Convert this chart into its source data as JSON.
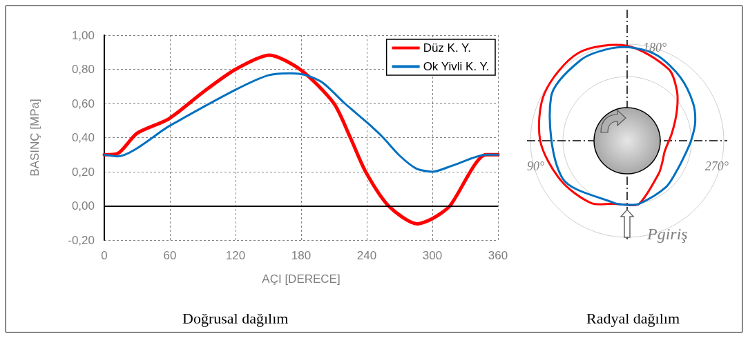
{
  "chart_data": [
    {
      "type": "line",
      "title": "Doğrusal dağılım",
      "xlabel": "AÇI [DERECE]",
      "ylabel": "BASINÇ [MPa]",
      "xlim": [
        0,
        360
      ],
      "xticks": [
        0,
        60,
        120,
        180,
        240,
        300,
        360
      ],
      "ylim": [
        -0.2,
        1
      ],
      "yticks": [
        {
          "value": -0.2,
          "label": "-0,20"
        },
        {
          "value": 0,
          "label": "0,00"
        },
        {
          "value": 0.2,
          "label": "0,20"
        },
        {
          "value": 0.4,
          "label": "0,40"
        },
        {
          "value": 0.6,
          "label": "0,60"
        },
        {
          "value": 0.8,
          "label": "0,80"
        },
        {
          "value": 1,
          "label": "1,00"
        }
      ],
      "grid": true,
      "legend": "top right",
      "marker": "none",
      "line_style": "solid",
      "ref_lines": [
        {
          "axis": "y",
          "value": 0,
          "color": "#000000"
        }
      ],
      "series": [
        {
          "name": "Düz K. Y.",
          "color": "#ff0000",
          "x": [
            0,
            12,
            30,
            59,
            90,
            120,
            151,
            180,
            210,
            225,
            239,
            260,
            286,
            300,
            316,
            349,
            360
          ],
          "values": [
            0.3,
            0.306,
            0.426,
            0.51,
            0.665,
            0.8,
            0.883,
            0.795,
            0.6,
            0.4,
            0.2,
            0.0,
            -0.105,
            -0.075,
            0.0,
            0.3,
            0.3
          ]
        },
        {
          "name": "Ok Yivli K. Y.",
          "color": "#0070c0",
          "x": [
            0,
            12,
            60,
            120,
            150,
            170,
            185,
            200,
            220,
            240,
            255,
            270,
            285,
            300,
            320,
            349,
            360
          ],
          "values": [
            0.3,
            0.29,
            0.47,
            0.68,
            0.765,
            0.777,
            0.765,
            0.72,
            0.6,
            0.49,
            0.4,
            0.295,
            0.22,
            0.2,
            0.24,
            0.3,
            0.3
          ]
        }
      ]
    },
    {
      "type": "other",
      "title": "Radyal dağılım",
      "annotations": [
        "180°",
        "90°",
        "270°",
        "Pgiriş"
      ]
    }
  ]
}
